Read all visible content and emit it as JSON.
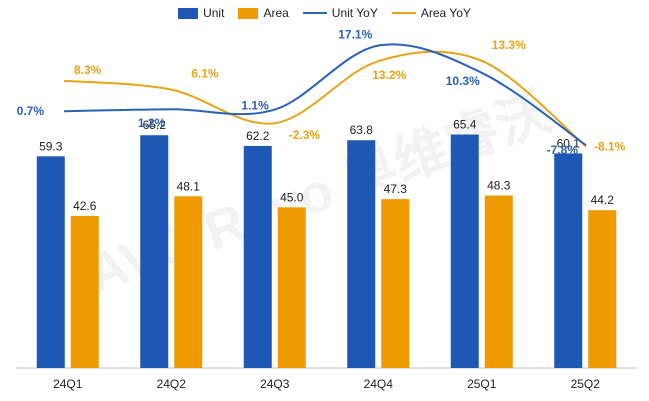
{
  "chart_data": {
    "type": "bar",
    "categories": [
      "24Q1",
      "24Q2",
      "24Q3",
      "24Q4",
      "25Q1",
      "25Q2"
    ],
    "series": [
      {
        "name": "Unit",
        "kind": "bar",
        "color": "#1F57B4",
        "values": [
          59.3,
          65.2,
          62.2,
          63.8,
          65.4,
          60.1
        ],
        "labels": [
          "59.3",
          "65.2",
          "62.2",
          "63.8",
          "65.4",
          "60.1"
        ]
      },
      {
        "name": "Area",
        "kind": "bar",
        "color": "#EE9A00",
        "values": [
          42.6,
          48.1,
          45.0,
          47.3,
          48.3,
          44.2
        ],
        "labels": [
          "42.6",
          "48.1",
          "45.0",
          "47.3",
          "48.3",
          "44.2"
        ]
      },
      {
        "name": "Unit YoY",
        "kind": "line",
        "color": "#2A62B8",
        "values": [
          0.7,
          1.2,
          1.1,
          17.1,
          10.3,
          -7.8
        ],
        "labels": [
          "0.7%",
          "1.2%",
          "1.1%",
          "17.1%",
          "10.3%",
          "-7.8%"
        ]
      },
      {
        "name": "Area YoY",
        "kind": "line",
        "color": "#E8A317",
        "values": [
          8.3,
          6.1,
          -2.3,
          13.2,
          13.3,
          -8.1
        ],
        "labels": [
          "8.3%",
          "6.1%",
          "-2.3%",
          "13.2%",
          "13.3%",
          "-8.1%"
        ]
      }
    ],
    "bar_axis": {
      "min": 0,
      "max": 100,
      "visible": false
    },
    "line_axis": {
      "min": -12,
      "max": 23,
      "visible": false
    },
    "grid": false,
    "legend_position": "top-center",
    "watermark": "AVC Revo 奥维睿沃"
  }
}
